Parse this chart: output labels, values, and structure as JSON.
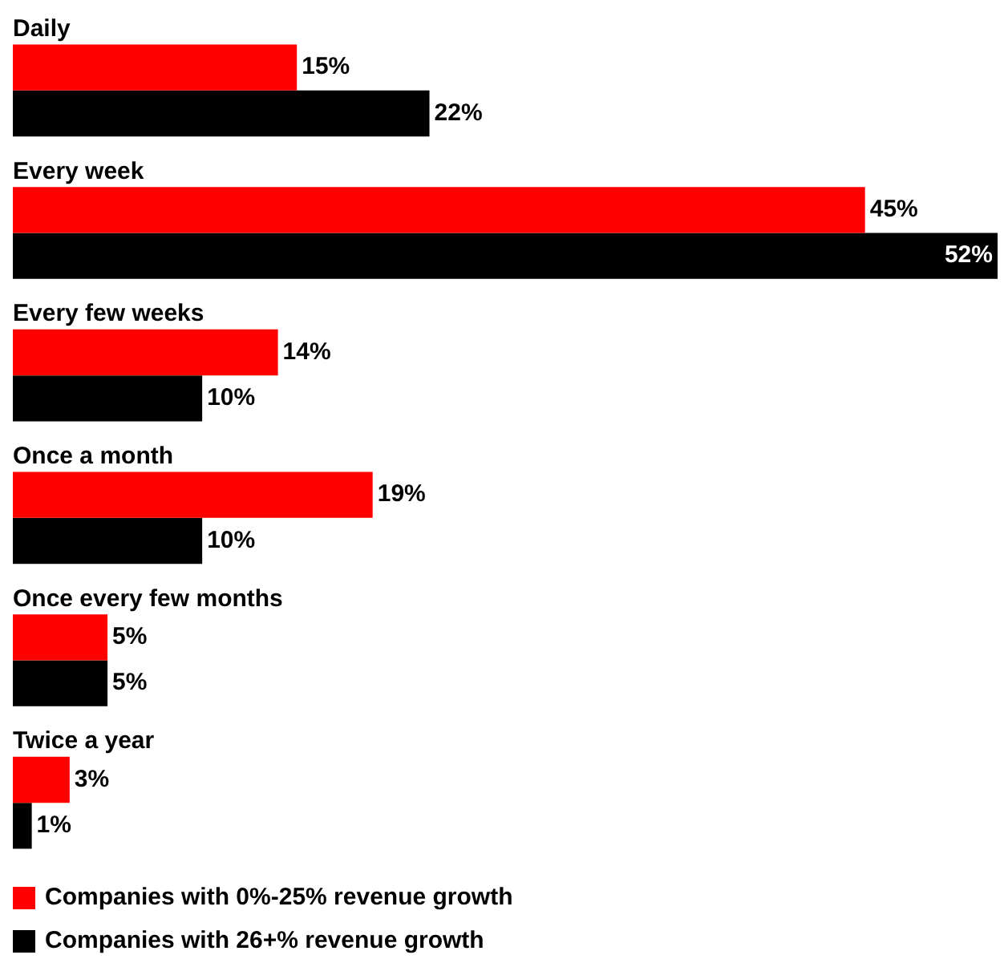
{
  "chart_data": {
    "type": "bar",
    "orientation": "horizontal",
    "categories": [
      "Daily",
      "Every week",
      "Every few weeks",
      "Once a month",
      "Once every few months",
      "Twice a year"
    ],
    "series": [
      {
        "name": "Companies with 0%-25% revenue growth",
        "color": "#ff0000",
        "values": [
          15,
          45,
          14,
          19,
          5,
          3
        ],
        "value_labels": [
          "15%",
          "45%",
          "14%",
          "19%",
          "5%",
          "3%"
        ]
      },
      {
        "name": "Companies with 26+% revenue growth",
        "color": "#000000",
        "values": [
          22,
          52,
          10,
          10,
          5,
          1
        ],
        "value_labels": [
          "22%",
          "52%",
          "10%",
          "10%",
          "5%",
          "1%"
        ]
      }
    ],
    "legend": "bottom"
  }
}
